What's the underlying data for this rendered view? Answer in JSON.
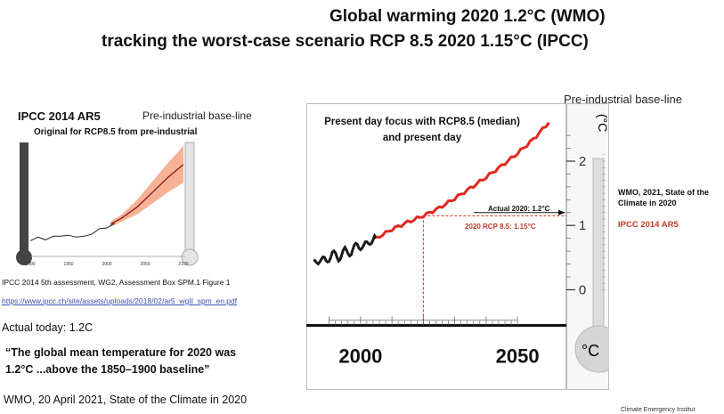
{
  "header": {
    "title_line1": "Global warming 2020 1.2°C (WMO)",
    "title_line2": "tracking the worst-case scenario RCP 8.5  2020 1.15°C (IPCC)"
  },
  "left_panel": {
    "title": "IPCC 2014 AR5",
    "baseline_label": "Pre-industrial base-line",
    "subtitle": "Original for RCP8.5 from pre-industrial",
    "source": "IPCC 2014 5th assessment, WG2, Assessment Box SPM.1 Figure 1",
    "link": "https://www.ipcc.ch/site/assets/uploads/2018/02/ar5_wgII_spm_en.pdf",
    "actual_today": "Actual today: 1.2C",
    "quote_line1": "“The global mean temperature for 2020 was",
    "quote_line2": "1.2°C ...above the 1850–1900 baseline”",
    "wmo_citation": "WMO, 20 April 2021, State of the Climate in 2020"
  },
  "right_panel": {
    "baseline_label": "Pre-industrial base-line",
    "chart_caption_line1": "Present day focus with RCP8.5 (median)",
    "chart_caption_line2": "and present day",
    "annotation_actual": "Actual 2020: 1.2°C",
    "annotation_rcp": "2020 RCP 8.5: 1.15°C",
    "wmo_side_line1": "WMO,  2021, State of the",
    "wmo_side_line2": "Climate in 2020",
    "ipcc_side": "IPCC 2014 AR5",
    "thermo_unit_top": "(°C",
    "thermo_unit_bottom": "°C"
  },
  "footer": {
    "text": "Climate Emergency Institut"
  },
  "colors": {
    "observed": "#1a1a1a",
    "projection": "#e0281e",
    "annotation_red": "#c0392b",
    "band": "#f4a582",
    "therm_bulb": "#d5d5d5"
  },
  "chart_data": [
    {
      "type": "line",
      "title": "IPCC 2014 AR5",
      "xlim": [
        1900,
        2100
      ],
      "ylim": [
        -1,
        5
      ],
      "x_ticks": [
        "1900",
        "1950",
        "2000",
        "2050",
        "2100"
      ],
      "series": [
        {
          "name": "observed",
          "x": [
            1900,
            1910,
            1920,
            1930,
            1940,
            1950,
            1960,
            1970,
            1980,
            1990,
            2000,
            2010
          ],
          "y": [
            -0.1,
            0.0,
            -0.05,
            0.05,
            0.15,
            0.1,
            0.1,
            0.05,
            0.25,
            0.45,
            0.6,
            0.75
          ]
        },
        {
          "name": "rcp8.5",
          "x": [
            2005,
            2020,
            2040,
            2060,
            2080,
            2100
          ],
          "y": [
            0.75,
            1.1,
            1.7,
            2.5,
            3.3,
            4.0
          ],
          "low": [
            0.6,
            0.9,
            1.3,
            1.9,
            2.5,
            3.0
          ],
          "high": [
            0.9,
            1.3,
            2.1,
            3.1,
            4.1,
            5.0
          ]
        }
      ]
    },
    {
      "type": "line",
      "title": "Present day focus with RCP8.5 (median)",
      "xlim": [
        1985,
        2065
      ],
      "ylim": [
        -0.7,
        2.9
      ],
      "x_ticks": [
        "2000",
        "2050"
      ],
      "y_ticks": [
        "0",
        "1",
        "2"
      ],
      "series": [
        {
          "name": "observed",
          "x": [
            1985,
            1987,
            1989,
            1991,
            1993,
            1995,
            1997,
            1999,
            2001,
            2003,
            2005
          ],
          "y": [
            0.4,
            0.48,
            0.44,
            0.56,
            0.5,
            0.6,
            0.58,
            0.7,
            0.66,
            0.76,
            0.8
          ]
        },
        {
          "name": "rcp8.5",
          "x": [
            2005,
            2010,
            2015,
            2020,
            2025,
            2030,
            2035,
            2040,
            2045,
            2050,
            2055,
            2060
          ],
          "y": [
            0.8,
            0.94,
            1.05,
            1.15,
            1.27,
            1.42,
            1.58,
            1.75,
            1.93,
            2.12,
            2.34,
            2.6
          ]
        }
      ],
      "annotations": [
        {
          "label": "Actual 2020: 1.2°C",
          "x": 2020,
          "y": 1.2
        },
        {
          "label": "2020 RCP 8.5: 1.15°C",
          "x": 2020,
          "y": 1.15
        }
      ]
    }
  ]
}
